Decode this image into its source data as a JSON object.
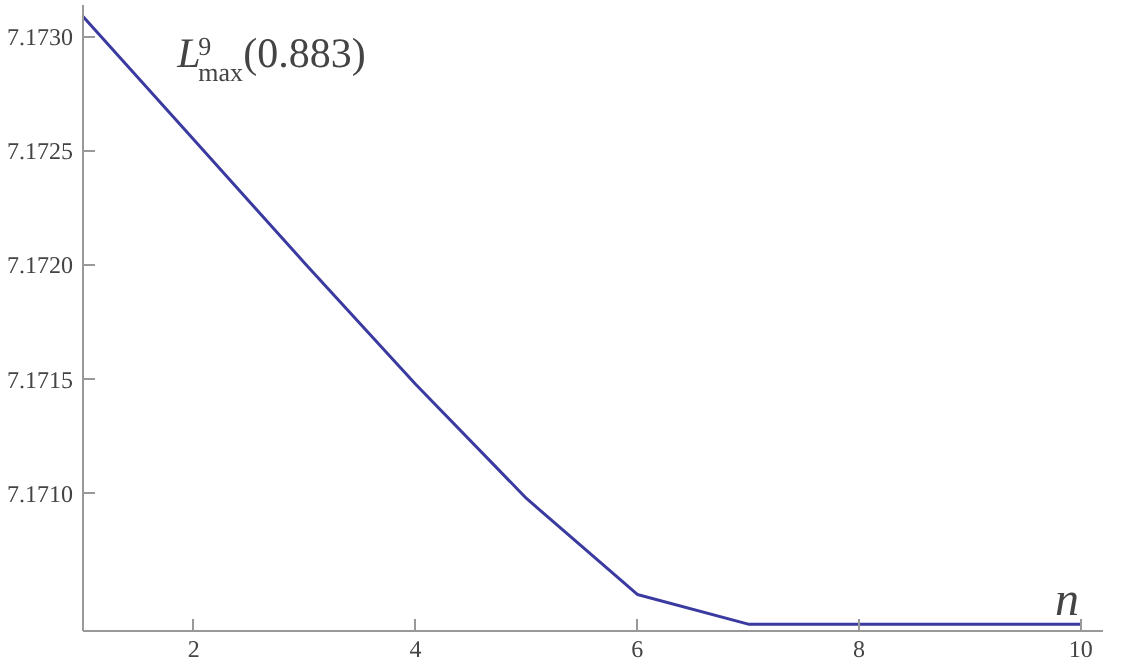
{
  "chart_data": {
    "type": "line",
    "xlabel": "n",
    "annotations": [
      "L$^{9}$$_{max}$(0.883)"
    ],
    "x": [
      1,
      2,
      3,
      4,
      5,
      6,
      7,
      8,
      9,
      10
    ],
    "series": [
      {
        "color": "#3a3aa0",
        "values": [
          7.17309,
          7.17255,
          7.17201,
          7.17148,
          7.17098,
          7.17056,
          7.17043,
          7.17043,
          7.17043,
          7.17043
        ]
      }
    ],
    "xlim": [
      1,
      10.2
    ],
    "ylim": [
      7.1704,
      7.17314
    ],
    "xticks": [
      2,
      4,
      6,
      8,
      10
    ],
    "yticks": [
      {
        "value": 7.171,
        "label": "7.1710"
      },
      {
        "value": 7.1715,
        "label": "7.1715"
      },
      {
        "value": 7.172,
        "label": "7.1720"
      },
      {
        "value": 7.1725,
        "label": "7.1725"
      },
      {
        "value": 7.173,
        "label": "7.1730"
      }
    ],
    "grid": false,
    "marker": "none",
    "line_style": "solid"
  }
}
